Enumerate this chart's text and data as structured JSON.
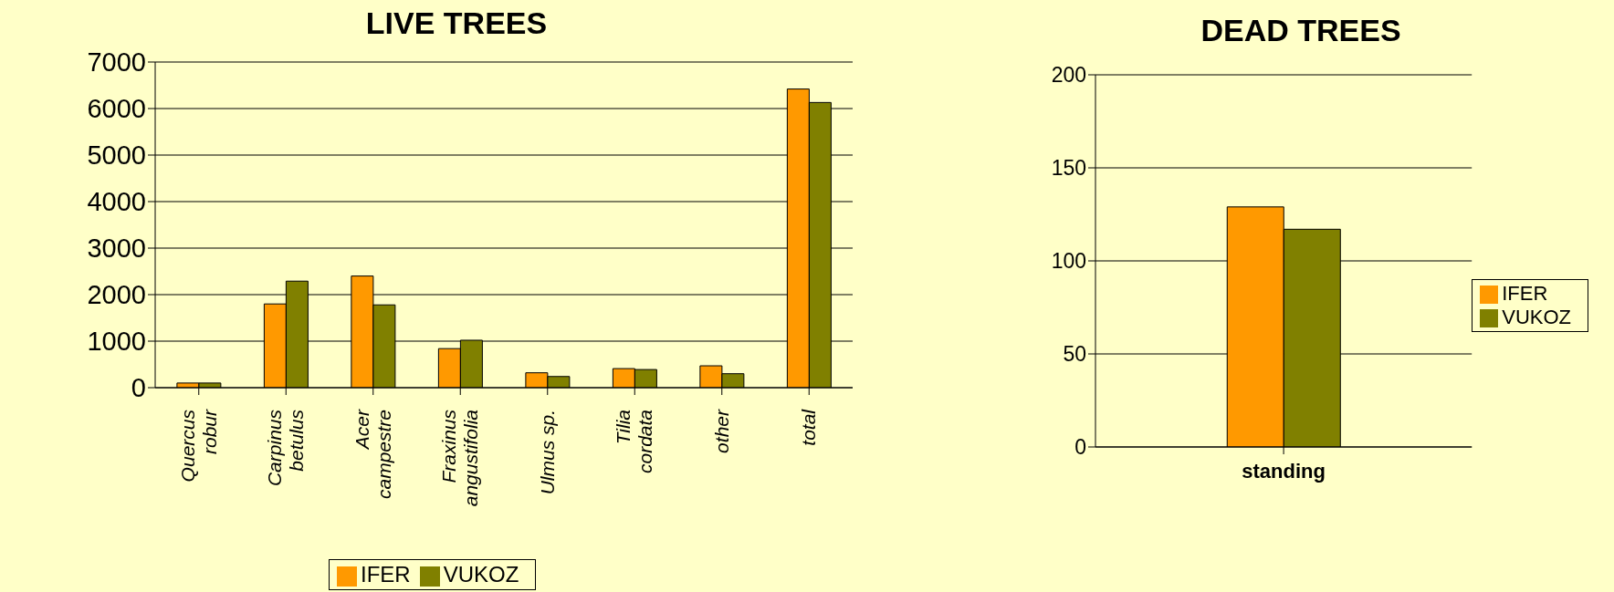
{
  "chart_data": [
    {
      "type": "bar",
      "title": "LIVE TREES",
      "categories": [
        "Quercus robur",
        "Carpinus betulus",
        "Acer campestre",
        "Fraxinus angustifolia",
        "Ulmus sp.",
        "Tilia cordata",
        "other",
        "total"
      ],
      "series": [
        {
          "name": "IFER",
          "color": "#ff9900",
          "values": [
            100,
            1800,
            2400,
            840,
            320,
            410,
            470,
            6420
          ]
        },
        {
          "name": "VUKOZ",
          "color": "#808000",
          "values": [
            100,
            2290,
            1780,
            1020,
            240,
            390,
            300,
            6130
          ]
        }
      ],
      "ylim": [
        0,
        7000
      ],
      "yticks": [
        0,
        1000,
        2000,
        3000,
        4000,
        5000,
        6000,
        7000
      ],
      "grid": "y",
      "legend": "bottom"
    },
    {
      "type": "bar",
      "title": "DEAD TREES",
      "categories": [
        "standing"
      ],
      "series": [
        {
          "name": "IFER",
          "color": "#ff9900",
          "values": [
            129
          ]
        },
        {
          "name": "VUKOZ",
          "color": "#808000",
          "values": [
            117
          ]
        }
      ],
      "ylim": [
        0,
        200
      ],
      "yticks": [
        0,
        50,
        100,
        150,
        200
      ],
      "grid": "y",
      "legend": "right"
    }
  ]
}
